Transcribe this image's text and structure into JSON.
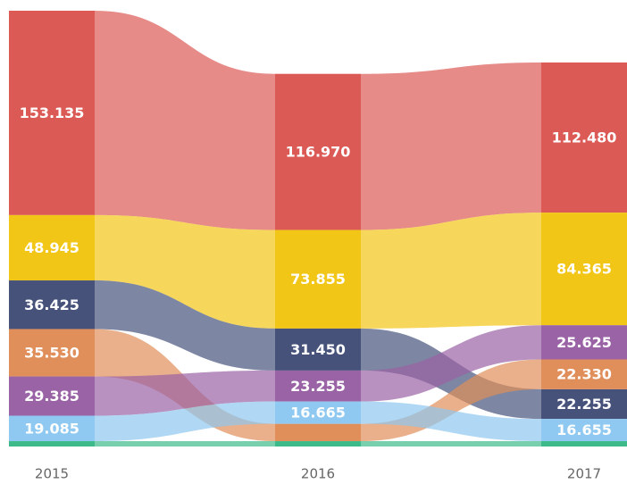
{
  "chart_data": {
    "type": "ribbon",
    "categories": [
      "2015",
      "2016",
      "2017"
    ],
    "series": [
      {
        "color": "#dc5a55",
        "values": [
          153135,
          116970,
          112480
        ],
        "value_labels": [
          "153.135",
          "116.970",
          "112.480"
        ]
      },
      {
        "color": "#f2c617",
        "values": [
          48945,
          73855,
          84365
        ],
        "value_labels": [
          "48.945",
          "73.855",
          "84.365"
        ]
      },
      {
        "color": "#46527a",
        "values": [
          36425,
          31450,
          22255
        ],
        "value_labels": [
          "36.425",
          "31.450",
          "22.255"
        ]
      },
      {
        "color": "#e08e5a",
        "values": [
          35530,
          13000,
          22330
        ],
        "value_labels": [
          "35.530",
          null,
          "22.330"
        ]
      },
      {
        "color": "#9a63a5",
        "values": [
          29385,
          23255,
          25625
        ],
        "value_labels": [
          "29.385",
          "23.255",
          "25.625"
        ]
      },
      {
        "color": "#8fc8f0",
        "values": [
          19085,
          16665,
          16655
        ],
        "value_labels": [
          "19.085",
          "16.665",
          "16.655"
        ]
      },
      {
        "color": "#3dba8a",
        "values": [
          4000,
          4000,
          4000
        ]
      }
    ]
  }
}
